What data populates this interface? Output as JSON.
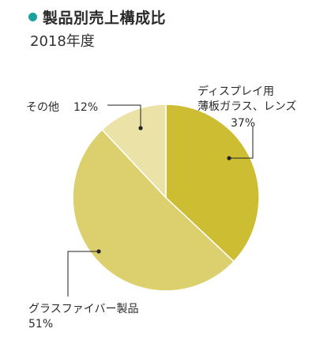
{
  "header": {
    "title": "製品別売上構成比",
    "subtitle": "2018年度"
  },
  "colors": {
    "accent_dot": "#19a39c"
  },
  "chart_data": {
    "type": "pie",
    "title": "製品別売上構成比",
    "subtitle": "2018年度",
    "slices": [
      {
        "label": [
          "ディスプレイ用",
          "薄板ガラス、レンズ"
        ],
        "value": 37,
        "value_label": "37%",
        "color": "#cdbd33"
      },
      {
        "label": [
          "グラスファイバー製品"
        ],
        "value": 51,
        "value_label": "51%",
        "color": "#dccf6d"
      },
      {
        "label": [
          "その他"
        ],
        "value": 12,
        "value_label": "12%",
        "color": "#ebe2a8"
      }
    ],
    "start_angle_deg": 0,
    "direction": "clockwise",
    "legend": "none"
  }
}
